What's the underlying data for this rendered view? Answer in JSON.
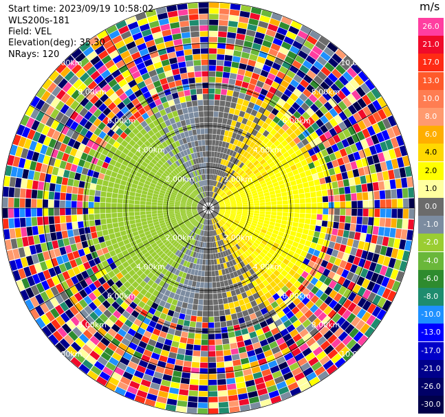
{
  "header": {
    "start_time": "Start time: 2023/09/19 10:58:02",
    "instrument": "WLS200s-181",
    "field": "Field: VEL",
    "elevation": "Elevation(deg): 35.30",
    "nrays": "NRays: 120"
  },
  "chart_data": {
    "type": "heatmap",
    "projection": "polar-ppi",
    "field": "VEL",
    "units": "m/s",
    "nrays": 120,
    "range_ring_labels": [
      "2.00km",
      "4.00km",
      "6.00km",
      "8.00km",
      "10.00km"
    ],
    "range_ring_labels_visible": [
      "2.00km",
      "2.00km",
      "2.00km",
      "4.00km",
      "4.00km",
      "6.00km",
      "6.00km",
      "8.00km",
      "8.00km",
      "10.00km",
      "10.00km"
    ],
    "colorbar": {
      "unit": "m/s",
      "ticks": [
        "26.0",
        "21.0",
        "17.0",
        "13.0",
        "10.0",
        "8.0",
        "6.0",
        "4.0",
        "2.0",
        "1.0",
        "0.0",
        "-1.0",
        "-2.0",
        "-4.0",
        "-6.0",
        "-8.0",
        "-10.0",
        "-13.0",
        "-17.0",
        "-21.0",
        "-26.0",
        "-30.0"
      ],
      "colors": [
        "#ff3ea0",
        "#f00a2a",
        "#ff2b14",
        "#ff5a2a",
        "#ff7d52",
        "#ff9a6e",
        "#ffae00",
        "#ffd800",
        "#ffff00",
        "#ffffa0",
        "#6b6b6b",
        "#7c8ca0",
        "#9acd32",
        "#6ab73a",
        "#2e8b2e",
        "#1e8c6e",
        "#1e90ff",
        "#0000ff",
        "#0000c8",
        "#00008b",
        "#000066",
        "#00004a"
      ]
    },
    "grid": true
  }
}
